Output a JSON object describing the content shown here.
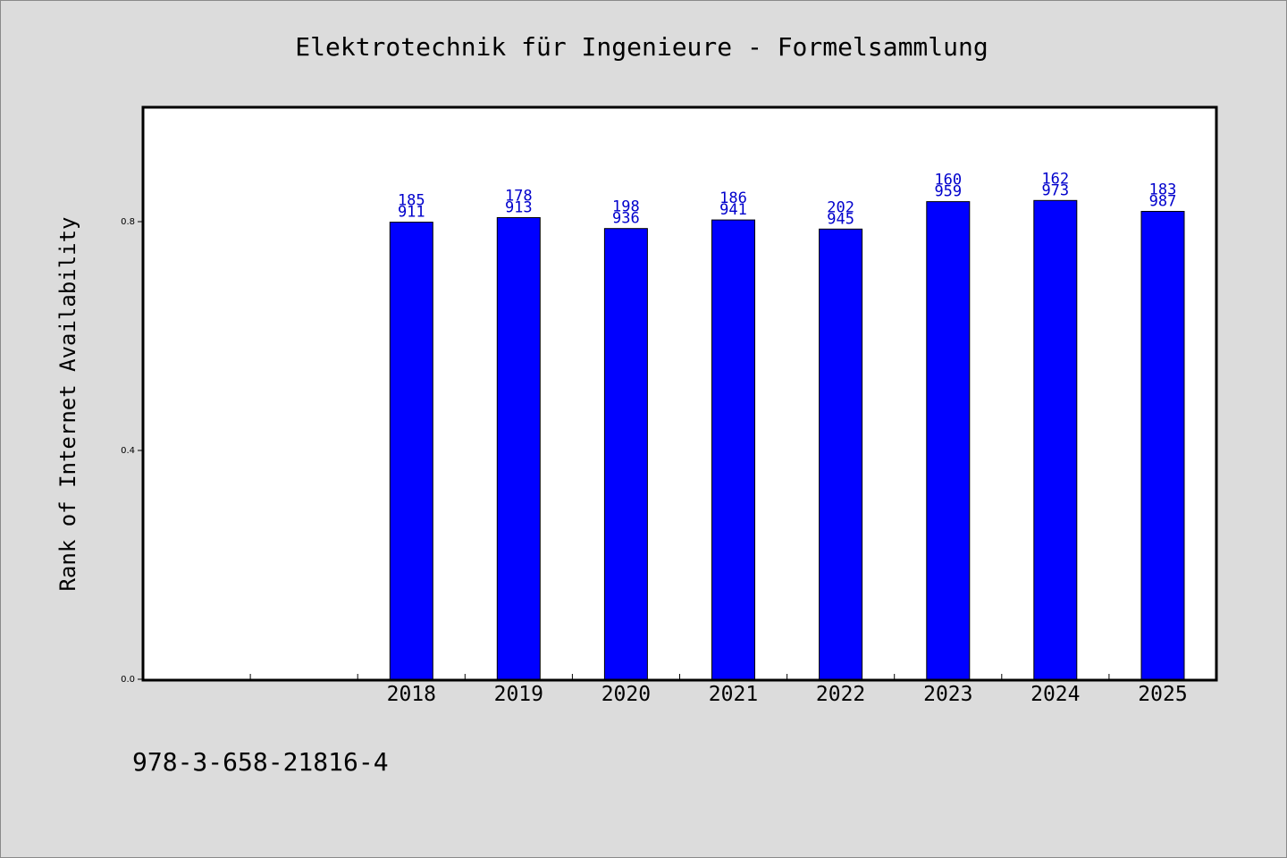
{
  "chart_data": {
    "type": "bar",
    "title": "Elektrotechnik für Ingenieure - Formelsammlung",
    "ylabel": "Rank of Internet Availability",
    "xlabel": "",
    "categories": [
      "",
      "",
      "2018",
      "2019",
      "2020",
      "2021",
      "2022",
      "2023",
      "2024",
      "2025"
    ],
    "values": [
      null,
      null,
      0.799,
      0.807,
      0.788,
      0.803,
      0.787,
      0.835,
      0.837,
      0.818
    ],
    "bar_labels": [
      null,
      null,
      [
        "185",
        "911"
      ],
      [
        "178",
        "913"
      ],
      [
        "198",
        "936"
      ],
      [
        "186",
        "941"
      ],
      [
        "202",
        "945"
      ],
      [
        "160",
        "959"
      ],
      [
        "162",
        "973"
      ],
      [
        "183",
        "987"
      ]
    ],
    "ylim": [
      0,
      1.0
    ],
    "yticks": [
      0.0,
      0.4,
      0.8
    ],
    "ytick_labels": [
      "0.0",
      "0.4",
      "0.8"
    ],
    "bar_color": "#0000ff",
    "label_color": "#0000cc",
    "grid": false,
    "legend": "none"
  },
  "footer": {
    "isbn": "978-3-658-21816-4"
  }
}
